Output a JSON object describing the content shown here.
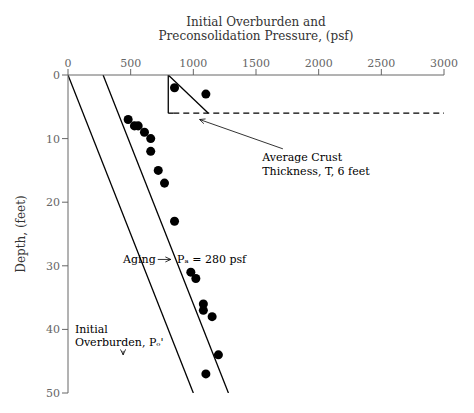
{
  "chart_data": {
    "type": "scatter",
    "xlabel": "Initial Overburden and\nPreconsolidation Pressure, (psf)",
    "ylabel": "Depth, (feet)",
    "xlim": [
      0,
      3000
    ],
    "ylim": [
      50,
      0
    ],
    "xticks": [
      0,
      500,
      1000,
      1500,
      2000,
      2500,
      3000
    ],
    "yticks": [
      0,
      10,
      20,
      30,
      40,
      50
    ],
    "grid": false,
    "series": [
      {
        "type": "scatter",
        "color": "#000000",
        "marker": "circle",
        "x": [
          850,
          1100,
          480,
          530,
          560,
          610,
          660,
          660,
          720,
          770,
          850,
          980,
          1020,
          1080,
          1080,
          1150,
          1200,
          1100
        ],
        "values": [
          2,
          3,
          7,
          8,
          8,
          9,
          10,
          12,
          15,
          17,
          23,
          31,
          32,
          36,
          37,
          38,
          44,
          47
        ]
      },
      {
        "type": "line",
        "color": "#000000",
        "line_style": "solid",
        "x": [
          0,
          1000
        ],
        "values": [
          0,
          50
        ]
      },
      {
        "type": "line",
        "color": "#000000",
        "line_style": "solid",
        "x": [
          280,
          1280
        ],
        "values": [
          0,
          50
        ]
      },
      {
        "type": "line",
        "color": "#000000",
        "line_style": "solid",
        "x": [
          800,
          800
        ],
        "values": [
          0,
          6
        ]
      },
      {
        "type": "line",
        "color": "#000000",
        "line_style": "solid",
        "x": [
          800,
          1120
        ],
        "values": [
          0,
          6
        ]
      },
      {
        "type": "line",
        "color": "#000000",
        "line_style": "solid",
        "x": [
          800,
          840
        ],
        "values": [
          6,
          6
        ]
      },
      {
        "type": "line",
        "color": "#000000",
        "line_style": "dashed",
        "x": [
          840,
          3000
        ],
        "values": [
          6,
          6
        ]
      }
    ],
    "annotations": [
      {
        "text": "Average Crust\nThickness, T, 6 feet",
        "x": 1550,
        "y": 14,
        "arrow_x": 1050,
        "arrow_y": 7,
        "align": "left"
      },
      {
        "text": "Aging",
        "x": 700,
        "y": 29,
        "arrow_x": 820,
        "arrow_y": 29,
        "align": "right"
      },
      {
        "text": "Pₐ = 280 psf",
        "x": 870,
        "y": 29,
        "arrow_x": 1000,
        "arrow_y": 29,
        "align": "left"
      },
      {
        "text": "Initial\nOverburden, Pₒ'",
        "x": 55,
        "y": 41,
        "arrow_x": 440,
        "arrow_y": 44,
        "align": "left"
      }
    ]
  }
}
